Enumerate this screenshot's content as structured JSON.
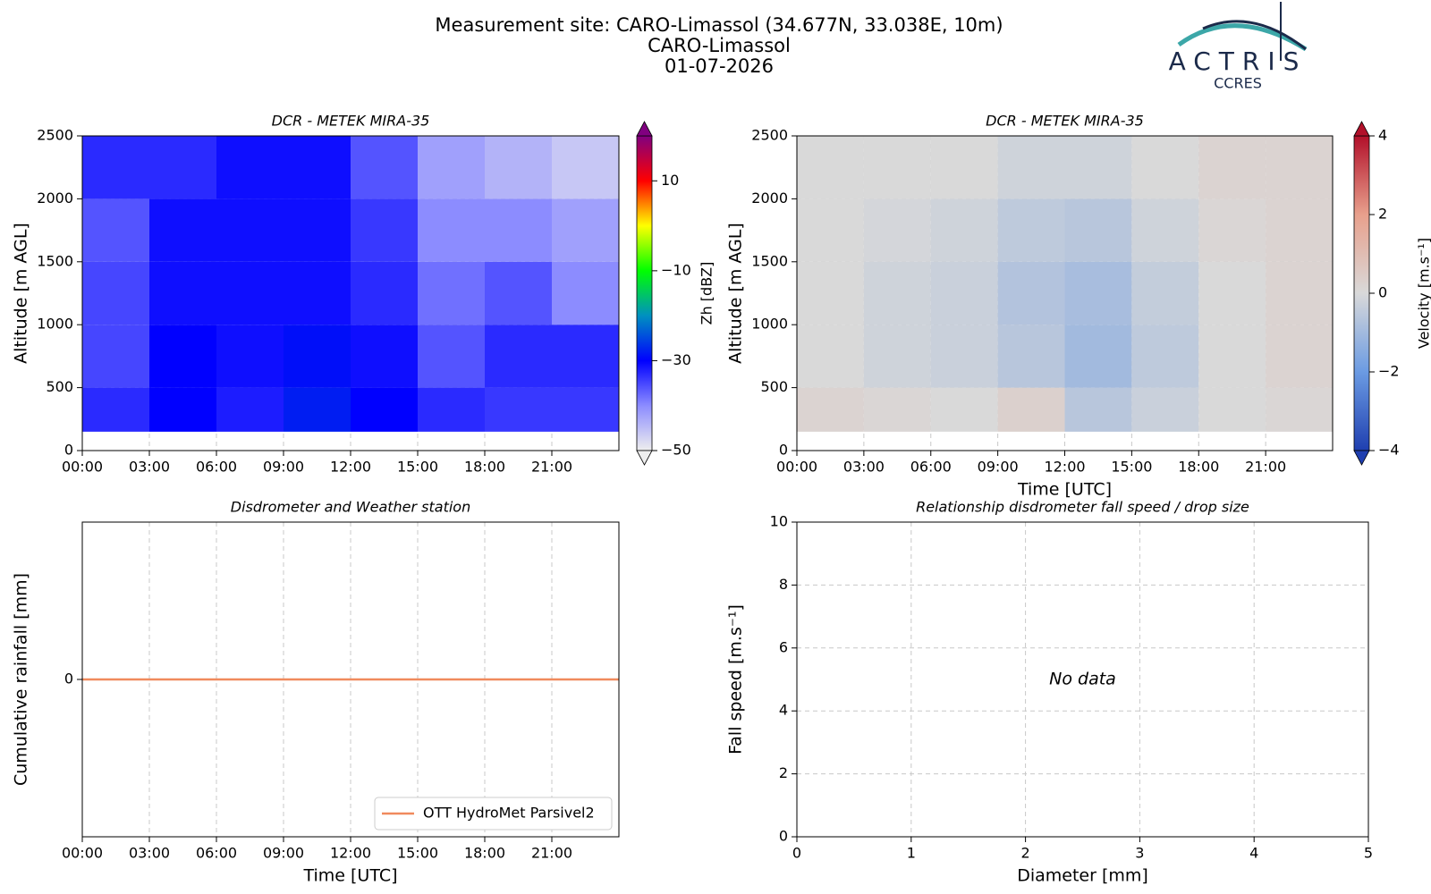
{
  "header": {
    "title": "Measurement site: CARO-Limassol (34.677N, 33.038E, 10m)",
    "site": "CARO-Limassol",
    "date": "01-07-2026",
    "logo": "ACTRIS",
    "logo_sub": "CCRES"
  },
  "chart_data": [
    {
      "type": "heatmap",
      "title": "DCR - METEK MIRA-35",
      "ylabel": "Altitude [m AGL]",
      "x": [
        0,
        3,
        6,
        9,
        12,
        15,
        18,
        21,
        24
      ],
      "y": [
        150,
        500,
        1000,
        1500,
        2000,
        2500
      ],
      "z": [
        [
          -33,
          -30,
          -32,
          -28,
          -30,
          -33,
          -34,
          -34
        ],
        [
          -35,
          -30,
          -31,
          -29,
          -31,
          -36,
          -33,
          -33
        ],
        [
          -35,
          -31,
          -31,
          -31,
          -33,
          -38,
          -36,
          -40
        ],
        [
          -36,
          -31,
          -31,
          -31,
          -34,
          -40,
          -40,
          -42
        ],
        [
          -33,
          -33,
          -31,
          -31,
          -36,
          -42,
          -44,
          -46
        ]
      ],
      "xlim": [
        0,
        24
      ],
      "ylim": [
        0,
        2500
      ],
      "xticks": [
        {
          "value": 0,
          "label": "00:00"
        },
        {
          "value": 3,
          "label": "03:00"
        },
        {
          "value": 6,
          "label": "06:00"
        },
        {
          "value": 9,
          "label": "09:00"
        },
        {
          "value": 12,
          "label": "12:00"
        },
        {
          "value": 15,
          "label": "15:00"
        },
        {
          "value": 18,
          "label": "18:00"
        },
        {
          "value": 21,
          "label": "21:00"
        }
      ],
      "yticks": [
        0,
        500,
        1000,
        1500,
        2000,
        2500
      ],
      "grid": true,
      "colorbar": {
        "label": "Zh [dBZ]",
        "lim": [
          -50,
          20
        ],
        "extend": "both",
        "ticks": [
          {
            "value": -50,
            "label": "−50"
          },
          {
            "value": -30,
            "label": "−30"
          },
          {
            "value": -10,
            "label": "−10"
          },
          10
        ],
        "colors": [
          "#eeeeee",
          "#8c8cff",
          "#0000ff",
          "#0090c0",
          "#00ff00",
          "#ffff00",
          "#ff0000",
          "#800080"
        ]
      }
    },
    {
      "type": "heatmap",
      "title": "DCR - METEK MIRA-35",
      "ylabel": "Altitude [m AGL]",
      "xlabel": "Time [UTC]",
      "x": [
        0,
        3,
        6,
        9,
        12,
        15,
        18,
        21,
        24
      ],
      "y": [
        150,
        500,
        1000,
        1500,
        2000,
        2500
      ],
      "z": [
        [
          0.2,
          0.1,
          0,
          0.3,
          -0.6,
          -0.3,
          0,
          0.1
        ],
        [
          0,
          -0.2,
          -0.3,
          -0.6,
          -1,
          -0.5,
          0,
          0.2
        ],
        [
          0,
          -0.2,
          -0.3,
          -0.7,
          -0.9,
          -0.4,
          0,
          0.2
        ],
        [
          0,
          -0.1,
          -0.2,
          -0.5,
          -0.6,
          -0.2,
          0.1,
          0.2
        ],
        [
          0,
          0,
          0,
          -0.2,
          -0.2,
          0,
          0.2,
          0.2
        ]
      ],
      "xlim": [
        0,
        24
      ],
      "ylim": [
        0,
        2500
      ],
      "xticks": [
        {
          "value": 0,
          "label": "00:00"
        },
        {
          "value": 3,
          "label": "03:00"
        },
        {
          "value": 6,
          "label": "06:00"
        },
        {
          "value": 9,
          "label": "09:00"
        },
        {
          "value": 12,
          "label": "12:00"
        },
        {
          "value": 15,
          "label": "15:00"
        },
        {
          "value": 18,
          "label": "18:00"
        },
        {
          "value": 21,
          "label": "21:00"
        }
      ],
      "yticks": [
        0,
        500,
        1000,
        1500,
        2000,
        2500
      ],
      "grid": true,
      "colorbar": {
        "label": "Velocity [m.s⁻¹]",
        "lim": [
          -4,
          4
        ],
        "extend": "both",
        "ticks": [
          {
            "value": -4,
            "label": "−4"
          },
          {
            "value": -2,
            "label": "−2"
          },
          0,
          2,
          4
        ],
        "colors": [
          "#1f3fb0",
          "#6b9be3",
          "#d9d9d9",
          "#e8a08c",
          "#b2102a"
        ]
      }
    },
    {
      "type": "line",
      "title": "Disdrometer and Weather station",
      "ylabel": "Cumulative rainfall [mm]",
      "xlabel": "Time [UTC]",
      "x": [
        0,
        24
      ],
      "series": [
        {
          "name": "OTT HydroMet Parsivel2",
          "color": "#f08a5d",
          "values": [
            0,
            0
          ]
        }
      ],
      "xlim": [
        0,
        24
      ],
      "ylim": [
        -0.055,
        0.055
      ],
      "xticks": [
        {
          "value": 0,
          "label": "00:00"
        },
        {
          "value": 3,
          "label": "03:00"
        },
        {
          "value": 6,
          "label": "06:00"
        },
        {
          "value": 9,
          "label": "09:00"
        },
        {
          "value": 12,
          "label": "12:00"
        },
        {
          "value": 15,
          "label": "15:00"
        },
        {
          "value": 18,
          "label": "18:00"
        },
        {
          "value": 21,
          "label": "21:00"
        }
      ],
      "yticks": [
        0
      ],
      "grid": true,
      "legend": "lower right"
    },
    {
      "type": "scatter",
      "title": "Relationship disdrometer fall speed / drop size",
      "ylabel": "Fall speed [m.s⁻¹]",
      "xlabel": "Diameter [mm]",
      "annotation": "No data",
      "xlim": [
        0,
        5
      ],
      "ylim": [
        0,
        10
      ],
      "xticks": [
        0,
        1,
        2,
        3,
        4,
        5
      ],
      "yticks": [
        0,
        2,
        4,
        6,
        8,
        10
      ],
      "grid": true
    }
  ]
}
